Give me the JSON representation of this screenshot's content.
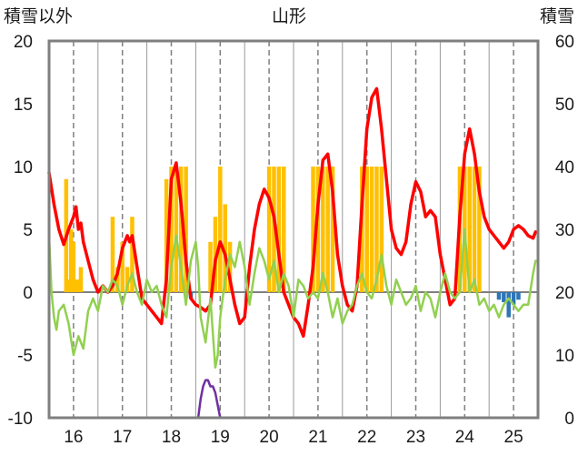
{
  "chart_data": {
    "type": "bar",
    "title": "山形",
    "ylabel_left": "積雪以外",
    "ylabel_right": "積雪",
    "ylim_left": [
      -10,
      20
    ],
    "ylim_right": [
      0,
      60
    ],
    "yticks_left": [
      "20",
      "15",
      "10",
      "5",
      "0",
      "-5",
      "-10"
    ],
    "yticks_right": [
      "60",
      "50",
      "40",
      "30",
      "20",
      "10",
      "0"
    ],
    "x_range": [
      15.5,
      25.5
    ],
    "xticks": [
      "16",
      "17",
      "18",
      "19",
      "20",
      "21",
      "22",
      "23",
      "24",
      "25"
    ],
    "grid": "vertical dashed at each day",
    "legend": "none",
    "series": [
      {
        "color": "#FFC000",
        "kind": "bars",
        "axis": "left",
        "x": [
          15.85,
          15.9,
          15.95,
          16.0,
          16.05,
          16.1,
          16.15,
          16.8,
          16.9,
          17.0,
          17.1,
          17.2,
          17.9,
          18.0,
          18.1,
          18.2,
          18.3,
          18.8,
          18.9,
          19.0,
          19.1,
          19.2,
          20.0,
          20.1,
          20.2,
          20.3,
          20.9,
          21.0,
          21.1,
          21.2,
          21.3,
          21.9,
          22.0,
          22.1,
          22.2,
          22.3,
          23.9,
          24.0,
          24.1,
          24.2,
          24.3
        ],
        "values": [
          9,
          1,
          5,
          4,
          1,
          1,
          2,
          6,
          2,
          4,
          2,
          6,
          9,
          10,
          10,
          10,
          10,
          4,
          6,
          10,
          7,
          4,
          10,
          10,
          10,
          10,
          10,
          10,
          10,
          10,
          10,
          10,
          10,
          10,
          10,
          10,
          10,
          10,
          10,
          10,
          10
        ]
      },
      {
        "color": "#2E75B6",
        "kind": "bars",
        "axis": "left",
        "x": [
          18.4,
          24.7,
          24.8,
          24.9,
          25.0,
          25.1
        ],
        "values": [
          -0.5,
          -0.6,
          -0.8,
          -2.0,
          -1.0,
          -0.6
        ]
      },
      {
        "color": "#FF0000",
        "kind": "line",
        "axis": "left",
        "x": [
          15.5,
          15.6,
          15.7,
          15.8,
          15.9,
          16.0,
          16.05,
          16.1,
          16.15,
          16.2,
          16.3,
          16.4,
          16.5,
          16.6,
          16.7,
          16.8,
          16.9,
          17.0,
          17.1,
          17.15,
          17.2,
          17.3,
          17.4,
          17.5,
          17.6,
          17.7,
          17.8,
          17.9,
          18.0,
          18.1,
          18.2,
          18.3,
          18.4,
          18.5,
          18.6,
          18.7,
          18.8,
          18.9,
          19.0,
          19.1,
          19.2,
          19.3,
          19.4,
          19.5,
          19.6,
          19.7,
          19.8,
          19.9,
          20.0,
          20.1,
          20.2,
          20.3,
          20.4,
          20.5,
          20.6,
          20.7,
          20.8,
          20.9,
          21.0,
          21.1,
          21.2,
          21.3,
          21.4,
          21.5,
          21.6,
          21.7,
          21.8,
          21.9,
          22.0,
          22.1,
          22.2,
          22.3,
          22.4,
          22.5,
          22.6,
          22.7,
          22.8,
          22.9,
          23.0,
          23.1,
          23.2,
          23.3,
          23.4,
          23.5,
          23.6,
          23.7,
          23.8,
          23.9,
          24.0,
          24.1,
          24.2,
          24.3,
          24.4,
          24.5,
          24.6,
          24.7,
          24.8,
          24.9,
          25.0,
          25.1,
          25.2,
          25.3,
          25.4,
          25.45
        ],
        "values": [
          9.5,
          7.0,
          5.0,
          3.8,
          5.0,
          6.0,
          6.8,
          5.0,
          5.5,
          4.0,
          2.5,
          1.0,
          0.0,
          0.5,
          0.0,
          0.5,
          1.5,
          3.5,
          4.5,
          4.0,
          4.5,
          2.0,
          -0.5,
          -1.0,
          -1.5,
          -2.0,
          -2.5,
          1.0,
          9.0,
          10.3,
          7.0,
          2.5,
          -0.5,
          -1.0,
          -1.2,
          -1.5,
          -1.0,
          2.5,
          4.0,
          3.0,
          1.0,
          -1.0,
          -2.5,
          -2.0,
          2.0,
          5.0,
          7.0,
          8.2,
          7.5,
          6.0,
          3.0,
          0.0,
          -1.0,
          -2.0,
          -2.5,
          -3.5,
          -1.0,
          2.0,
          7.0,
          10.5,
          11.0,
          8.0,
          3.0,
          0.5,
          -1.0,
          -1.5,
          0.5,
          7.0,
          13.0,
          15.5,
          16.2,
          13.0,
          9.0,
          5.0,
          3.5,
          3.0,
          4.0,
          7.0,
          8.8,
          8.0,
          6.0,
          6.5,
          6.0,
          3.0,
          1.0,
          -1.0,
          -0.5,
          6.0,
          11.0,
          13.0,
          11.0,
          8.0,
          6.0,
          5.0,
          4.5,
          4.0,
          3.5,
          4.0,
          5.0,
          5.3,
          5.0,
          4.5,
          4.3,
          4.8
        ]
      },
      {
        "color": "#92D050",
        "kind": "line",
        "axis": "left",
        "x": [
          15.5,
          15.55,
          15.6,
          15.65,
          15.7,
          15.8,
          15.9,
          16.0,
          16.1,
          16.2,
          16.3,
          16.4,
          16.5,
          16.6,
          16.7,
          16.8,
          16.9,
          17.0,
          17.1,
          17.2,
          17.3,
          17.4,
          17.5,
          17.6,
          17.7,
          17.8,
          17.9,
          18.0,
          18.1,
          18.2,
          18.3,
          18.4,
          18.5,
          18.55,
          18.6,
          18.7,
          18.8,
          18.9,
          18.95,
          19.0,
          19.1,
          19.2,
          19.3,
          19.4,
          19.5,
          19.6,
          19.7,
          19.8,
          19.9,
          20.0,
          20.1,
          20.2,
          20.3,
          20.4,
          20.5,
          20.6,
          20.7,
          20.8,
          20.9,
          21.0,
          21.1,
          21.2,
          21.3,
          21.4,
          21.5,
          21.6,
          21.7,
          21.8,
          21.9,
          22.0,
          22.1,
          22.2,
          22.3,
          22.4,
          22.5,
          22.6,
          22.7,
          22.8,
          22.9,
          23.0,
          23.1,
          23.2,
          23.3,
          23.4,
          23.5,
          23.6,
          23.7,
          23.8,
          23.9,
          24.0,
          24.1,
          24.2,
          24.3,
          24.4,
          24.5,
          24.6,
          24.7,
          24.8,
          24.9,
          25.0,
          25.1,
          25.2,
          25.3,
          25.4,
          25.45
        ],
        "values": [
          4.5,
          0.0,
          -2.0,
          -3.0,
          -1.5,
          -1.0,
          -2.5,
          -5.0,
          -3.5,
          -4.5,
          -1.5,
          -0.5,
          -1.5,
          0.5,
          0.0,
          1.0,
          0.5,
          -1.0,
          0.5,
          1.5,
          0.0,
          -1.0,
          1.0,
          0.0,
          0.5,
          -1.0,
          -2.0,
          2.0,
          4.5,
          2.0,
          -1.0,
          2.5,
          4.0,
          2.0,
          -2.0,
          -4.0,
          -0.5,
          -6.0,
          -5.0,
          -2.0,
          1.0,
          3.0,
          2.0,
          4.0,
          2.0,
          -1.0,
          1.5,
          3.5,
          2.5,
          1.0,
          2.5,
          0.0,
          1.5,
          0.5,
          -2.0,
          1.0,
          0.5,
          -0.5,
          0.0,
          -0.5,
          1.5,
          0.0,
          -2.0,
          -0.5,
          -2.5,
          -1.5,
          -1.0,
          0.5,
          1.5,
          0.0,
          -0.5,
          1.0,
          3.0,
          0.5,
          -1.0,
          1.0,
          0.0,
          -1.0,
          -0.5,
          0.5,
          -1.5,
          0.0,
          -0.5,
          -2.0,
          0.0,
          1.5,
          0.0,
          -0.5,
          0.0,
          5.0,
          0.0,
          1.0,
          -1.0,
          -0.5,
          -1.5,
          -1.0,
          -2.0,
          -1.0,
          -0.5,
          -1.0,
          -1.5,
          -1.0,
          -1.0,
          1.5,
          2.5
        ]
      },
      {
        "color": "#7030A0",
        "kind": "line",
        "axis": "right",
        "x": [
          15.5,
          18.55,
          18.6,
          18.65,
          18.7,
          18.75,
          18.8,
          18.85,
          18.9,
          18.95,
          19.0,
          25.5
        ],
        "values": [
          0,
          0,
          3,
          5,
          6,
          6,
          5,
          5,
          4,
          2,
          0,
          0
        ]
      }
    ]
  }
}
